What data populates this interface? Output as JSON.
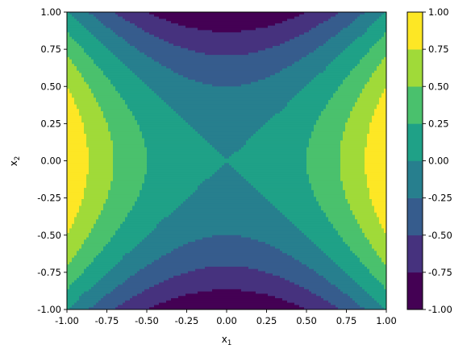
{
  "chart_data": {
    "type": "contourf",
    "function": "x1^2 - x2^2",
    "x": {
      "label_base": "x",
      "label_sub": "1",
      "range": [
        -1.0,
        1.0
      ],
      "ticks": [
        "-1.00",
        "-0.75",
        "-0.50",
        "-0.25",
        "0.00",
        "0.25",
        "0.50",
        "0.75",
        "1.00"
      ]
    },
    "y": {
      "label_base": "x",
      "label_sub": "2",
      "range": [
        -1.0,
        1.0
      ],
      "ticks": [
        "-1.00",
        "-0.75",
        "-0.50",
        "-0.25",
        "0.00",
        "0.25",
        "0.50",
        "0.75",
        "1.00"
      ]
    },
    "levels": [
      -1.0,
      -0.75,
      -0.5,
      -0.25,
      0.0,
      0.25,
      0.5,
      0.75,
      1.0
    ],
    "colorbar": {
      "ticks": [
        "-1.00",
        "-0.75",
        "-0.50",
        "-0.25",
        "0.00",
        "0.25",
        "0.50",
        "0.75",
        "1.00"
      ],
      "colors": [
        "#440154",
        "#46327e",
        "#365c8d",
        "#277f8e",
        "#1fa187",
        "#4ac16d",
        "#a0da39",
        "#fde725"
      ]
    }
  }
}
